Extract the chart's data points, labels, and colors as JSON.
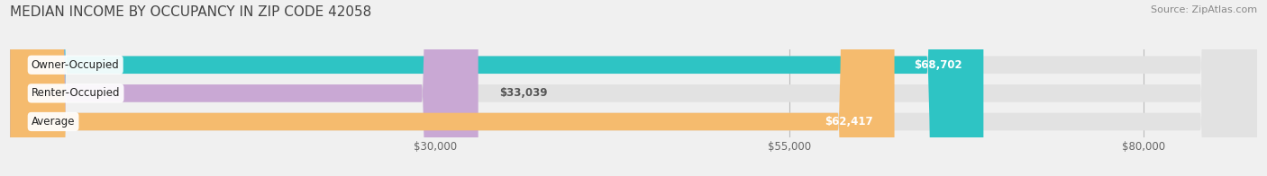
{
  "title": "MEDIAN INCOME BY OCCUPANCY IN ZIP CODE 42058",
  "source": "Source: ZipAtlas.com",
  "categories": [
    "Owner-Occupied",
    "Renter-Occupied",
    "Average"
  ],
  "values": [
    68702,
    33039,
    62417
  ],
  "bar_colors": [
    "#2ec4c4",
    "#c9a8d4",
    "#f5bb6e"
  ],
  "bar_bg_color": "#e2e2e2",
  "value_labels": [
    "$68,702",
    "$33,039",
    "$62,417"
  ],
  "x_ticks": [
    30000,
    55000,
    80000
  ],
  "x_tick_labels": [
    "$30,000",
    "$55,000",
    "$80,000"
  ],
  "x_min": 0,
  "x_max": 88000,
  "title_fontsize": 11,
  "bar_height": 0.62,
  "background_color": "#f0f0f0"
}
